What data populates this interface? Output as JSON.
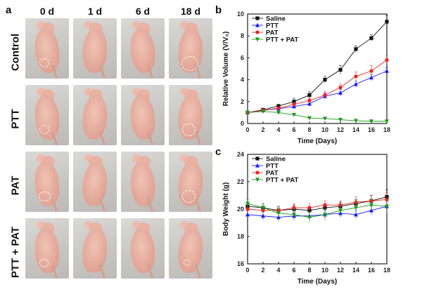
{
  "panel_labels": {
    "a": "a",
    "b": "b",
    "c": "c"
  },
  "photo_grid": {
    "columns": [
      "0 d",
      "1 d",
      "6 d",
      "18 d"
    ],
    "rows": [
      "Control",
      "PTT",
      "PAT",
      "PTT + PAT"
    ],
    "tumor_circles": [
      [
        8,
        0,
        0,
        14
      ],
      [
        8,
        0,
        0,
        11
      ],
      [
        9,
        0,
        0,
        11
      ],
      [
        7,
        0,
        0,
        5
      ]
    ]
  },
  "colors": {
    "Saline": "#111111",
    "PTT": "#1a1aff",
    "PAT": "#ee2222",
    "PTT + PAT": "#1a9a1a"
  },
  "chart_data": [
    {
      "panel": "b",
      "type": "line",
      "xlabel": "Time (Days)",
      "ylabel": "Relative Volume (V/V₀)",
      "xlim": [
        0,
        18
      ],
      "ylim": [
        0,
        10
      ],
      "xticks": [
        0,
        2,
        4,
        6,
        8,
        10,
        12,
        14,
        16,
        18
      ],
      "yticks": [
        0,
        2,
        4,
        6,
        8,
        10
      ],
      "x": [
        0,
        2,
        4,
        6,
        8,
        10,
        12,
        14,
        16,
        18
      ],
      "legend_position": "top-left",
      "series": [
        {
          "name": "Saline",
          "marker": "square",
          "values": [
            1.0,
            1.25,
            1.6,
            2.0,
            2.6,
            4.0,
            4.9,
            6.8,
            7.8,
            9.3
          ],
          "errors": [
            0.1,
            0.15,
            0.15,
            0.3,
            0.3,
            0.3,
            0.4,
            0.3,
            0.3,
            0.6
          ]
        },
        {
          "name": "PTT",
          "marker": "triangle-up",
          "values": [
            1.0,
            1.2,
            1.35,
            1.55,
            1.8,
            2.5,
            2.8,
            3.6,
            4.2,
            4.8
          ],
          "errors": [
            0.1,
            0.1,
            0.15,
            0.15,
            0.2,
            0.3,
            0.3,
            0.3,
            0.3,
            0.3
          ]
        },
        {
          "name": "PAT",
          "marker": "circle",
          "values": [
            1.0,
            1.2,
            1.4,
            1.75,
            2.1,
            2.6,
            3.3,
            4.3,
            4.8,
            5.8
          ],
          "errors": [
            0.1,
            0.1,
            0.15,
            0.2,
            0.25,
            0.3,
            0.3,
            0.4,
            0.5,
            0.4
          ]
        },
        {
          "name": "PTT + PAT",
          "marker": "triangle-down",
          "values": [
            1.0,
            1.1,
            1.0,
            0.8,
            0.5,
            0.45,
            0.35,
            0.25,
            0.2,
            0.2
          ],
          "errors": [
            0.05,
            0.1,
            0.1,
            0.1,
            0.08,
            0.08,
            0.05,
            0.05,
            0.05,
            0.05
          ]
        }
      ]
    },
    {
      "panel": "c",
      "type": "line",
      "xlabel": "Time (Days)",
      "ylabel": "Body Weight (g)",
      "xlim": [
        0,
        18
      ],
      "ylim": [
        16,
        24
      ],
      "xticks": [
        0,
        2,
        4,
        6,
        8,
        10,
        12,
        14,
        16,
        18
      ],
      "yticks": [
        16,
        18,
        20,
        22,
        24
      ],
      "x": [
        0,
        2,
        4,
        6,
        8,
        10,
        12,
        14,
        16,
        18
      ],
      "legend_position": "top-left",
      "series": [
        {
          "name": "Saline",
          "marker": "square",
          "values": [
            20.2,
            20.1,
            19.9,
            20.0,
            19.9,
            20.1,
            20.2,
            20.4,
            20.6,
            20.9
          ],
          "errors": [
            0.3,
            0.3,
            0.3,
            0.3,
            0.3,
            0.3,
            0.3,
            0.3,
            0.4,
            0.5
          ]
        },
        {
          "name": "PTT",
          "marker": "triangle-up",
          "values": [
            19.6,
            19.5,
            19.4,
            19.5,
            19.5,
            19.6,
            19.7,
            19.6,
            19.9,
            20.2
          ],
          "errors": [
            0.3,
            0.3,
            0.3,
            0.3,
            0.3,
            0.3,
            0.3,
            0.3,
            0.3,
            0.4
          ]
        },
        {
          "name": "PAT",
          "marker": "circle",
          "values": [
            20.0,
            19.9,
            19.9,
            20.1,
            20.1,
            20.3,
            20.3,
            20.5,
            20.6,
            20.7
          ],
          "errors": [
            0.3,
            0.3,
            0.3,
            0.3,
            0.3,
            0.3,
            0.3,
            0.4,
            0.4,
            0.5
          ]
        },
        {
          "name": "PTT + PAT",
          "marker": "triangle-down",
          "values": [
            20.4,
            20.1,
            19.7,
            19.6,
            19.4,
            19.6,
            19.9,
            20.1,
            20.3,
            20.2
          ],
          "errors": [
            0.3,
            0.3,
            0.4,
            0.4,
            0.4,
            0.4,
            0.4,
            0.4,
            0.4,
            0.5
          ]
        }
      ]
    }
  ]
}
